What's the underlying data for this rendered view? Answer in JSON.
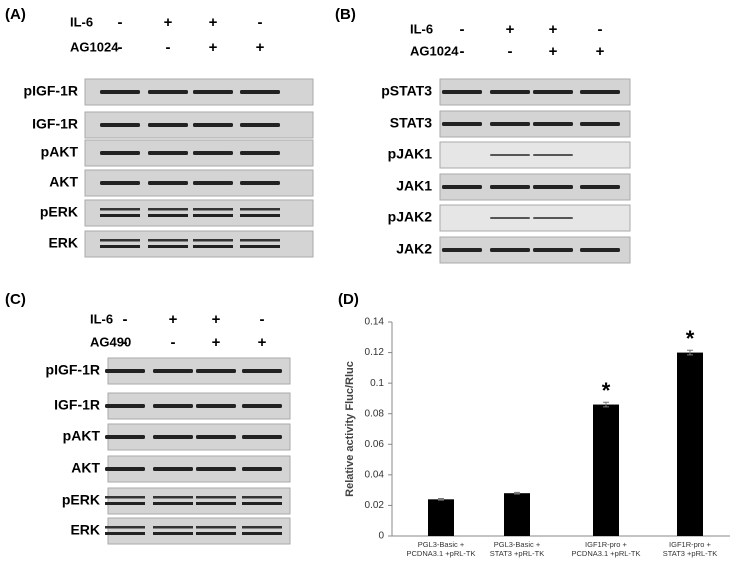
{
  "panels": [
    {
      "label": "(A)",
      "treatments": [
        {
          "name": "IL-6",
          "signs": [
            "-",
            "+",
            "+",
            "-"
          ]
        },
        {
          "name": "AG1024",
          "signs": [
            "-",
            "-",
            "+",
            "+"
          ]
        }
      ],
      "rows": [
        "pIGF-1R",
        "IGF-1R",
        "pAKT",
        "AKT",
        "pERK",
        "ERK"
      ]
    },
    {
      "label": "(B)",
      "treatments": [
        {
          "name": "IL-6",
          "signs": [
            "-",
            "+",
            "+",
            "-"
          ]
        },
        {
          "name": "AG1024",
          "signs": [
            "-",
            "-",
            "+",
            "+"
          ]
        }
      ],
      "rows": [
        "pSTAT3",
        "STAT3",
        "pJAK1",
        "JAK1",
        "pJAK2",
        "JAK2"
      ]
    },
    {
      "label": "(C)",
      "treatments": [
        {
          "name": "IL-6",
          "signs": [
            "-",
            "+",
            "+",
            "-"
          ]
        },
        {
          "name": "AG490",
          "signs": [
            "-",
            "-",
            "+",
            "+"
          ]
        }
      ],
      "rows": [
        "pIGF-1R",
        "IGF-1R",
        "pAKT",
        "AKT",
        "pERK",
        "ERK"
      ]
    }
  ],
  "chart_data": {
    "type": "bar",
    "label": "(D)",
    "ylabel": "Relative activity Fluc/Rluc",
    "categories": [
      "PGL3-Basic +\nPCDNA3.1 +pRL-TK",
      "PGL3-Basic +\nSTAT3 +pRL-TK",
      "IGF1R-pro +\nPCDNA3.1 +pRL-TK",
      "IGF1R-pro +\nSTAT3 +pRL-TK"
    ],
    "values": [
      0.024,
      0.028,
      0.086,
      0.12
    ],
    "errors": [
      0.0005,
      0.0005,
      0.0015,
      0.0015
    ],
    "annotations": [
      "*",
      "*"
    ],
    "color": "#000000",
    "ylim": [
      0,
      0.14
    ],
    "yticks": [
      0,
      0.02,
      0.04,
      0.06,
      0.08,
      0.1,
      0.12,
      0.14
    ]
  }
}
